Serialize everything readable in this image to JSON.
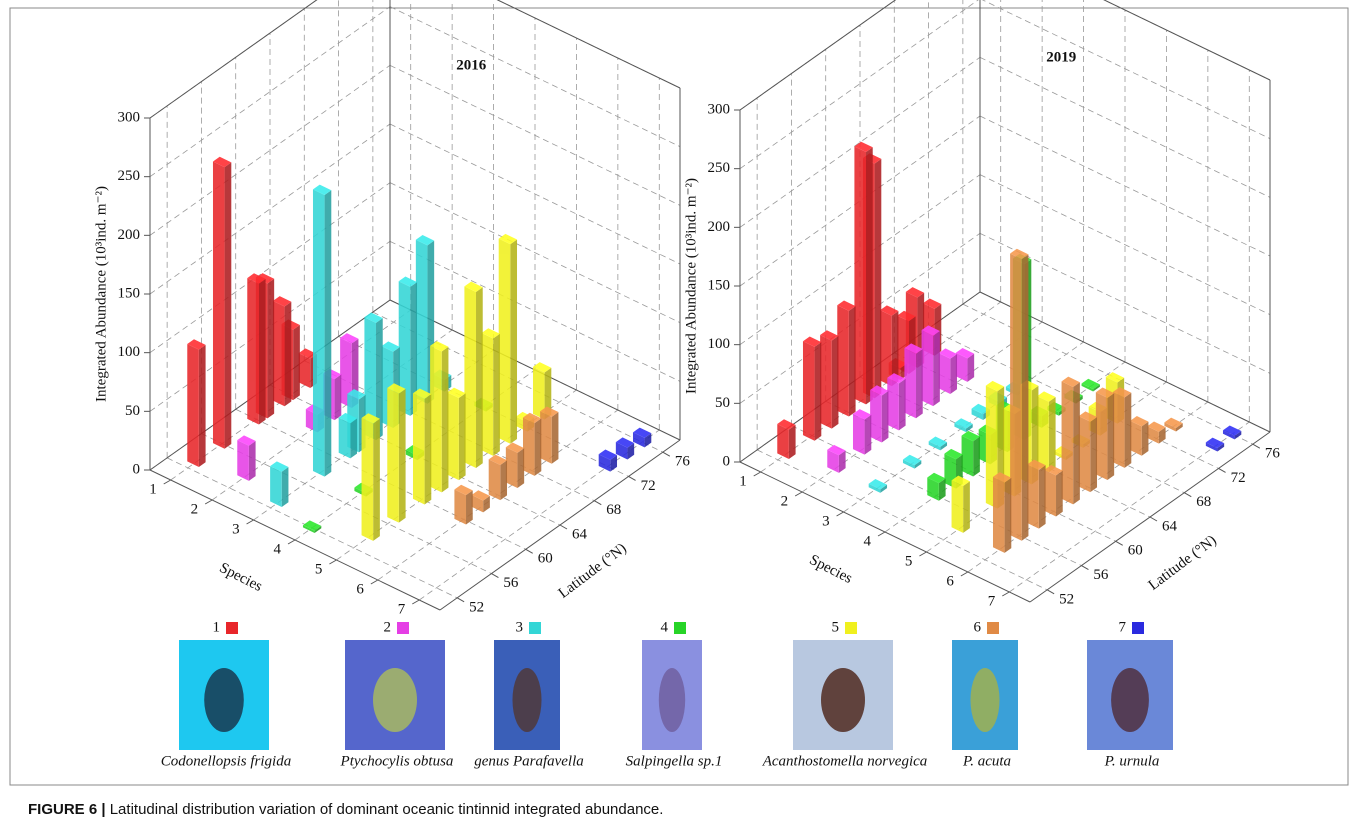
{
  "chart_data": [
    {
      "type": "bar3d",
      "title": "2016",
      "zlabel": "Integrated Abundance (10³ind. m⁻²)",
      "xlabel": "Species",
      "ylabel": "Latitude (°N)",
      "categories": [
        "1",
        "2",
        "3",
        "4",
        "5",
        "6",
        "7"
      ],
      "lat_lim": [
        50,
        78
      ],
      "lat_ticks": [
        52,
        56,
        60,
        64,
        68,
        72,
        76
      ],
      "zlim": [
        0,
        300
      ],
      "zticks": [
        0,
        50,
        100,
        150,
        200,
        250,
        300
      ],
      "grid": true,
      "series": [
        {
          "color": "#e8262a",
          "x": [
            53,
            56,
            60,
            61,
            63,
            64,
            66
          ],
          "values": [
            100,
            240,
            120,
            115,
            85,
            60,
            25
          ]
        },
        {
          "color": "#e53ee5",
          "x": [
            54,
            62,
            64,
            66
          ],
          "values": [
            30,
            15,
            35,
            55
          ]
        },
        {
          "color": "#33d6d6",
          "x": [
            53,
            58,
            61,
            62,
            64,
            66,
            68,
            70,
            72
          ],
          "values": [
            30,
            240,
            30,
            45,
            100,
            65,
            110,
            135,
            10
          ]
        },
        {
          "color": "#27d427",
          "x": [
            52,
            58,
            64,
            72
          ],
          "values": [
            2,
            3,
            4,
            3
          ]
        },
        {
          "color": "#f0f01e",
          "x": [
            54,
            57,
            60,
            62,
            64,
            66,
            68,
            70,
            72,
            74
          ],
          "values": [
            100,
            110,
            90,
            120,
            70,
            150,
            100,
            170,
            8,
            40
          ]
        },
        {
          "color": "#e08a45",
          "x": [
            60,
            62,
            64,
            66,
            68,
            70
          ],
          "values": [
            25,
            10,
            30,
            30,
            45,
            40
          ]
        },
        {
          "color": "#2a2adf",
          "x": [
            72,
            74,
            76
          ],
          "values": [
            10,
            10,
            8
          ]
        }
      ]
    },
    {
      "type": "bar3d",
      "title": "2019",
      "zlabel": "Integrated Abundance (10³ind. m⁻²)",
      "xlabel": "Species",
      "ylabel": "Latitude (°N)",
      "categories": [
        "1",
        "2",
        "3",
        "4",
        "5",
        "6",
        "7"
      ],
      "lat_lim": [
        50,
        78
      ],
      "lat_ticks": [
        52,
        56,
        60,
        64,
        68,
        72,
        76
      ],
      "zlim": [
        0,
        300
      ],
      "zticks": [
        0,
        50,
        100,
        150,
        200,
        250,
        300
      ],
      "grid": true,
      "series": [
        {
          "color": "#e8262a",
          "x": [
            53,
            56,
            58,
            60,
            62,
            63,
            65,
            66,
            67,
            68,
            70
          ],
          "values": [
            25,
            80,
            75,
            90,
            215,
            200,
            60,
            10,
            45,
            60,
            40
          ]
        },
        {
          "color": "#e53ee5",
          "x": [
            54,
            57,
            59,
            61,
            63,
            65,
            67,
            69
          ],
          "values": [
            15,
            30,
            40,
            40,
            55,
            60,
            30,
            20
          ]
        },
        {
          "color": "#33d6d6",
          "x": [
            54,
            58,
            61,
            64,
            66,
            68,
            70
          ],
          "values": [
            3,
            3,
            3,
            3,
            5,
            5,
            3
          ]
        },
        {
          "color": "#27d427",
          "x": [
            56,
            58,
            60,
            62,
            64,
            66,
            68,
            70,
            72,
            74
          ],
          "values": [
            15,
            25,
            30,
            25,
            35,
            150,
            10,
            3,
            3,
            2
          ]
        },
        {
          "color": "#f0f01e",
          "x": [
            54,
            58,
            60,
            62,
            64,
            66,
            68,
            70,
            72
          ],
          "values": [
            40,
            100,
            70,
            80,
            60,
            3,
            3,
            20,
            35
          ]
        },
        {
          "color": "#e08a45",
          "x": [
            54,
            56,
            58,
            60,
            62,
            64,
            66,
            68,
            70,
            72,
            74
          ],
          "values": [
            60,
            240,
            50,
            35,
            100,
            60,
            70,
            60,
            25,
            10,
            3
          ]
        },
        {
          "color": "#2a2adf",
          "x": [
            74,
            76
          ],
          "values": [
            3,
            3
          ]
        }
      ]
    }
  ],
  "legend": [
    {
      "number": "1",
      "name": "Codonellopsis frigida"
    },
    {
      "number": "2",
      "name": "Ptychocylis obtusa"
    },
    {
      "number": "3",
      "name": "genus Parafavella"
    },
    {
      "number": "4",
      "name": "Salpingella sp.1"
    },
    {
      "number": "5",
      "name": "Acanthostomella norvegica"
    },
    {
      "number": "6",
      "name": "P. acuta"
    },
    {
      "number": "7",
      "name": "P. urnula"
    }
  ],
  "caption": {
    "label": "FIGURE 6 |",
    "text": "Latitudinal distribution variation of dominant oceanic tintinnid integrated abundance."
  }
}
